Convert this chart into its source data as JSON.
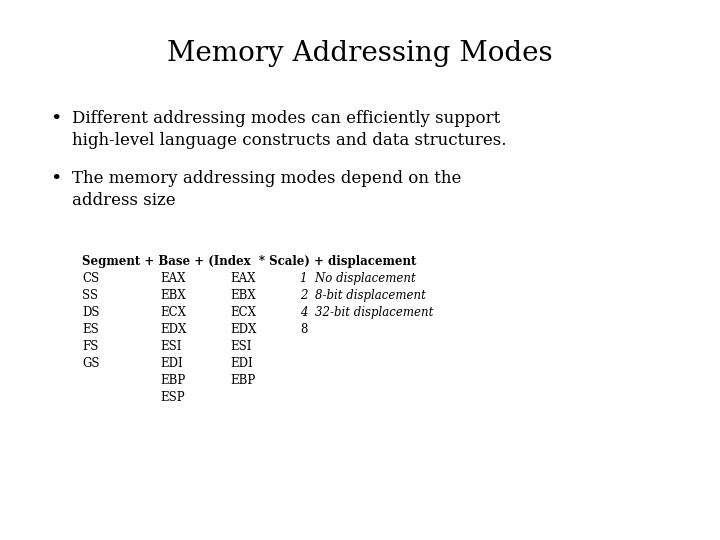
{
  "title": "Memory Addressing Modes",
  "background_color": "#ffffff",
  "text_color": "#000000",
  "title_fontsize": 20,
  "body_fontsize": 12,
  "table_fontsize": 8.5,
  "bullet1_line1": "Different addressing modes can efficiently support",
  "bullet1_line2": "high-level language constructs and data structures.",
  "bullet2_line1": "The memory addressing modes depend on the",
  "bullet2_line2": "address size",
  "table_header": "Segment + Base + (Index  * Scale) + displacement",
  "col1": [
    "CS",
    "SS",
    "DS",
    "ES",
    "FS",
    "GS",
    "",
    ""
  ],
  "col2": [
    "EAX",
    "EBX",
    "ECX",
    "EDX",
    "ESI",
    "EDI",
    "EBP",
    "ESP"
  ],
  "col3": [
    "EAX",
    "EBX",
    "ECX",
    "EDX",
    "ESI",
    "EDI",
    "EBP",
    ""
  ],
  "col4_normal": [
    "",
    "",
    "",
    "8",
    "",
    "",
    "",
    ""
  ],
  "col4_italic": [
    "1  No displacement",
    "2  8-bit displacement",
    "4  32-bit displacement",
    "",
    "",
    "",
    "",
    ""
  ]
}
